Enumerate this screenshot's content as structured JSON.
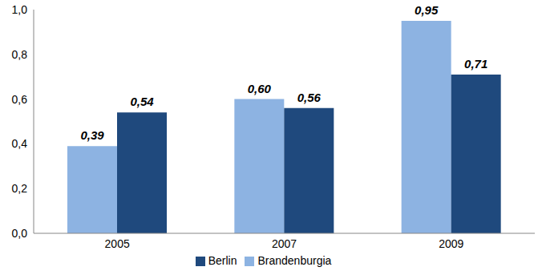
{
  "chart_data": {
    "type": "bar",
    "categories": [
      "2005",
      "2007",
      "2009"
    ],
    "series": [
      {
        "name": "Brandenburgia",
        "color": "#8db3e2",
        "values": [
          0.39,
          0.6,
          0.95
        ],
        "value_labels": [
          "0,39",
          "0,60",
          "0,95"
        ]
      },
      {
        "name": "Berlin",
        "color": "#1f497d",
        "values": [
          0.54,
          0.56,
          0.71
        ],
        "value_labels": [
          "0,54",
          "0,56",
          "0,71"
        ]
      }
    ],
    "ylim": [
      0,
      1
    ],
    "yticks": [
      {
        "value": 0,
        "label": "0,0"
      },
      {
        "value": 0.2,
        "label": "0,2"
      },
      {
        "value": 0.4,
        "label": "0,4"
      },
      {
        "value": 0.6,
        "label": "0,6"
      },
      {
        "value": 0.8,
        "label": "0,8"
      },
      {
        "value": 1,
        "label": "1,0"
      }
    ],
    "data_labels": true,
    "legend": "bottom",
    "grid": false
  }
}
